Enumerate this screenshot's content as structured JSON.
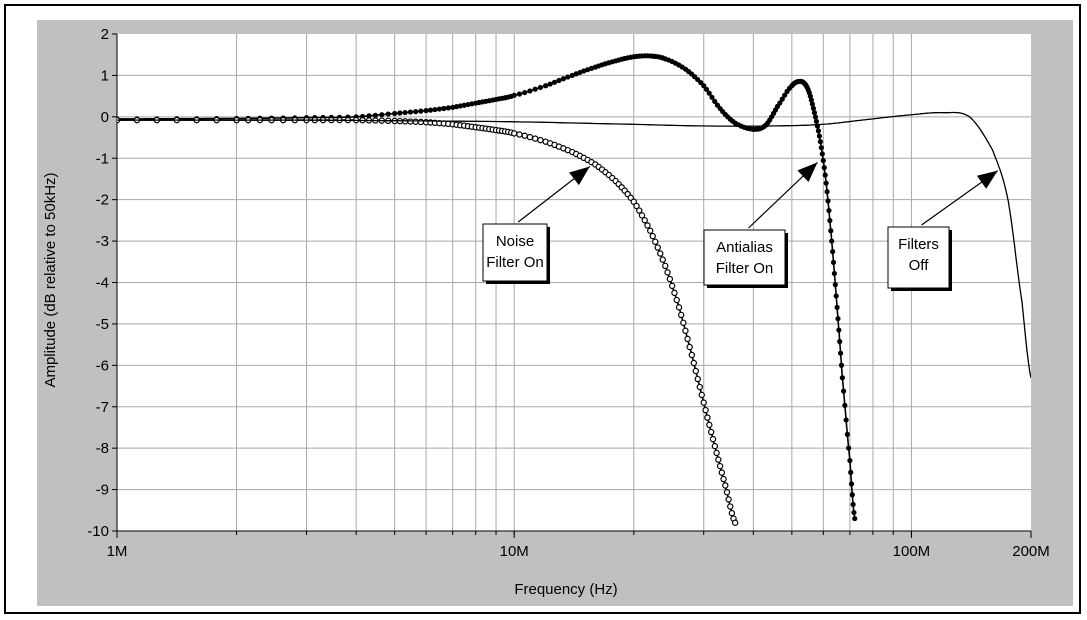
{
  "chart_data": {
    "type": "line",
    "xlabel": "Frequency (Hz)",
    "ylabel": "Amplitude (dB relative to 50kHz)",
    "xscale": "log",
    "xlim": [
      1000000,
      200000000
    ],
    "ylim": [
      -10,
      2
    ],
    "grid": true,
    "x_ticks": [
      {
        "value": 1000000,
        "label": "1M"
      },
      {
        "value": 10000000,
        "label": "10M"
      },
      {
        "value": 100000000,
        "label": "100M"
      },
      {
        "value": 200000000,
        "label": "200M"
      }
    ],
    "y_ticks": [
      {
        "value": 2,
        "label": "2"
      },
      {
        "value": 1,
        "label": "1"
      },
      {
        "value": 0,
        "label": "0"
      },
      {
        "value": -1,
        "label": "-1"
      },
      {
        "value": -2,
        "label": "-2"
      },
      {
        "value": -3,
        "label": "-3"
      },
      {
        "value": -4,
        "label": "-4"
      },
      {
        "value": -5,
        "label": "-5"
      },
      {
        "value": -6,
        "label": "-6"
      },
      {
        "value": -7,
        "label": "-7"
      },
      {
        "value": -8,
        "label": "-8"
      },
      {
        "value": -9,
        "label": "-9"
      },
      {
        "value": -10,
        "label": "-10"
      }
    ],
    "series": [
      {
        "marker": "filled-dot",
        "x": [
          1000000,
          2000000,
          3000000,
          4000000,
          5000000,
          6000000,
          7000000,
          8000000,
          9000000,
          10000000,
          12000000,
          14000000,
          16000000,
          18000000,
          20000000,
          22000000,
          24000000,
          27000000,
          30000000,
          33000000,
          36000000,
          40000000,
          43000000,
          46000000,
          50000000,
          53000000,
          55000000,
          57000000,
          59000000,
          61000000,
          63000000,
          65000000,
          67000000,
          70000000,
          72000000
        ],
        "y": [
          -0.05,
          -0.04,
          -0.02,
          0.0,
          0.08,
          0.15,
          0.23,
          0.33,
          0.42,
          0.52,
          0.75,
          1.0,
          1.2,
          1.35,
          1.45,
          1.47,
          1.4,
          1.15,
          0.75,
          0.2,
          -0.15,
          -0.3,
          -0.2,
          0.25,
          0.75,
          0.85,
          0.65,
          0.1,
          -0.6,
          -1.6,
          -3.0,
          -4.6,
          -6.3,
          -8.3,
          -9.7
        ]
      },
      {
        "marker": "hollow-dot",
        "x": [
          1000000,
          2000000,
          3000000,
          4000000,
          5000000,
          6000000,
          7000000,
          8000000,
          9000000,
          10000000,
          12000000,
          14000000,
          16000000,
          18000000,
          20000000,
          22000000,
          24000000,
          26000000,
          28000000,
          30000000,
          32000000,
          34000000,
          36000000
        ],
        "y": [
          -0.08,
          -0.08,
          -0.08,
          -0.08,
          -0.1,
          -0.13,
          -0.18,
          -0.25,
          -0.32,
          -0.4,
          -0.6,
          -0.85,
          -1.15,
          -1.55,
          -2.05,
          -2.75,
          -3.6,
          -4.6,
          -5.75,
          -6.9,
          -7.95,
          -8.9,
          -9.8
        ]
      },
      {
        "marker": "none",
        "x": [
          1000000,
          3000000,
          6000000,
          10000000,
          20000000,
          30000000,
          45000000,
          60000000,
          80000000,
          100000000,
          120000000,
          140000000,
          160000000,
          175000000,
          190000000,
          200000000
        ],
        "y": [
          -0.08,
          -0.08,
          -0.1,
          -0.12,
          -0.18,
          -0.22,
          -0.22,
          -0.18,
          -0.05,
          0.05,
          0.1,
          0.0,
          -0.8,
          -2.0,
          -4.5,
          -6.3
        ]
      }
    ],
    "annotations": [
      {
        "lines": [
          "Noise",
          "Filter On"
        ],
        "arrow_to": [
          15500000,
          -1.2
        ]
      },
      {
        "lines": [
          "Antialias",
          "Filter On"
        ],
        "arrow_to": [
          58000000,
          -1.1
        ]
      },
      {
        "lines": [
          "Filters",
          "Off"
        ],
        "arrow_to": [
          165000000,
          -1.3
        ]
      }
    ]
  }
}
